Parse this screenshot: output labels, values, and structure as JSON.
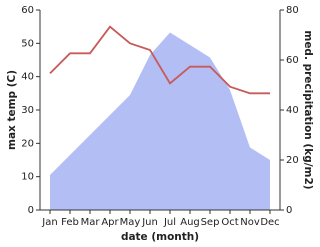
{
  "chart_data": {
    "type": "line",
    "xlabel": "date (month)",
    "ylabel": "max temp (C)",
    "y2label": "med. precipitation (kg/m2)",
    "categories": [
      "Jan",
      "Feb",
      "Mar",
      "Apr",
      "May",
      "Jun",
      "Jul",
      "Aug",
      "Sep",
      "Oct",
      "Nov",
      "Dec"
    ],
    "ylim": [
      0,
      60
    ],
    "yticks": [
      0,
      10,
      20,
      30,
      40,
      50,
      60
    ],
    "y2lim": [
      0,
      80
    ],
    "y2ticks": [
      0,
      20,
      40,
      60,
      80
    ],
    "series": [
      {
        "color": "#b3bef5",
        "fill": true,
        "axis": "y2",
        "values": [
          14,
          22,
          30,
          38,
          46,
          62,
          71,
          66,
          61,
          48,
          25,
          20
        ]
      },
      {
        "color": "#c85a5a",
        "values": [
          41,
          47,
          47,
          55,
          50,
          48,
          38,
          43,
          43,
          37,
          35,
          35
        ]
      }
    ]
  }
}
